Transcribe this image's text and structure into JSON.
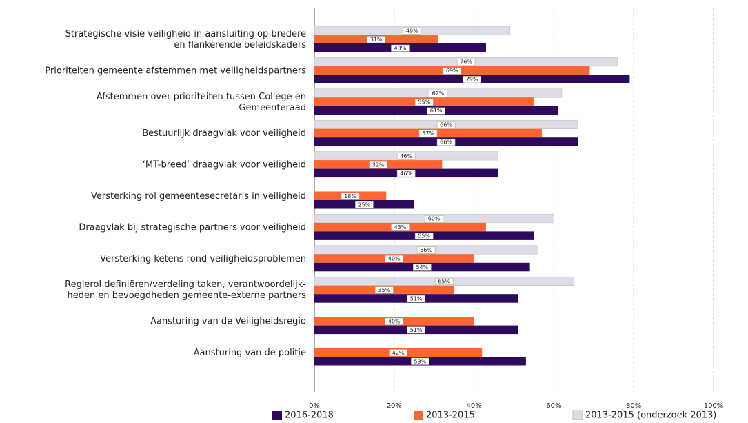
{
  "chart_data": {
    "type": "bar",
    "orientation": "horizontal",
    "categories": [
      "Strategische visie veiligheid in aansluiting op bredere\nen flankerende beleidskaders",
      "Prioriteiten gemeente afstemmen met veiligheidspartners",
      "Afstemmen over prioriteiten tussen College en\nGemeenteraad",
      "Bestuurlijk draagvlak voor veiligheid",
      "‘MT-breed’ draagvlak voor veiligheid",
      "Versterking rol gemeentesecretaris in veiligheid",
      "Draagvlak bij strategische partners voor veiligheid",
      "Versterking ketens rond veiligheidsproblemen",
      "Regierol definiëren/verdeling taken, verantwoordelijk-\nheden en bevoegdheden gemeente-externe partners",
      "Aansturing van de Veiligheidsregio",
      "Aansturing van de politie"
    ],
    "series": [
      {
        "name": "2016-2018",
        "color": "#2e0a5e",
        "values": [
          43,
          79,
          61,
          66,
          46,
          25,
          55,
          54,
          51,
          51,
          53
        ],
        "value_labels": [
          "43%",
          "79%",
          "61%",
          "66%",
          "46%",
          "25%",
          "55%",
          "54%",
          "51%",
          "51%",
          "53%"
        ]
      },
      {
        "name": "2013-2015",
        "color": "#ff6633",
        "values": [
          31,
          69,
          55,
          57,
          32,
          18,
          43,
          40,
          35,
          40,
          42
        ],
        "value_labels": [
          "31%",
          "69%",
          "55%",
          "57%",
          "32%",
          "18%",
          "43%",
          "40%",
          "35%",
          "40%",
          "42%"
        ]
      },
      {
        "name": "2013-2015 (onderzoek 2013)",
        "color": "#dddde8",
        "values": [
          49,
          76,
          62,
          66,
          46,
          null,
          60,
          56,
          65,
          null,
          null
        ],
        "value_labels": [
          "49%",
          "76%",
          "62%",
          "66%",
          "46%",
          null,
          "60%",
          "56%",
          "65%",
          null,
          null
        ]
      }
    ],
    "xlim": [
      0,
      100
    ],
    "xticks": [
      {
        "value": 0,
        "label": "0%"
      },
      {
        "value": 20,
        "label": "20%"
      },
      {
        "value": 40,
        "label": "40%"
      },
      {
        "value": 60,
        "label": "60%"
      },
      {
        "value": 80,
        "label": "80%"
      },
      {
        "value": 100,
        "label": "100%"
      }
    ],
    "grid": true
  }
}
